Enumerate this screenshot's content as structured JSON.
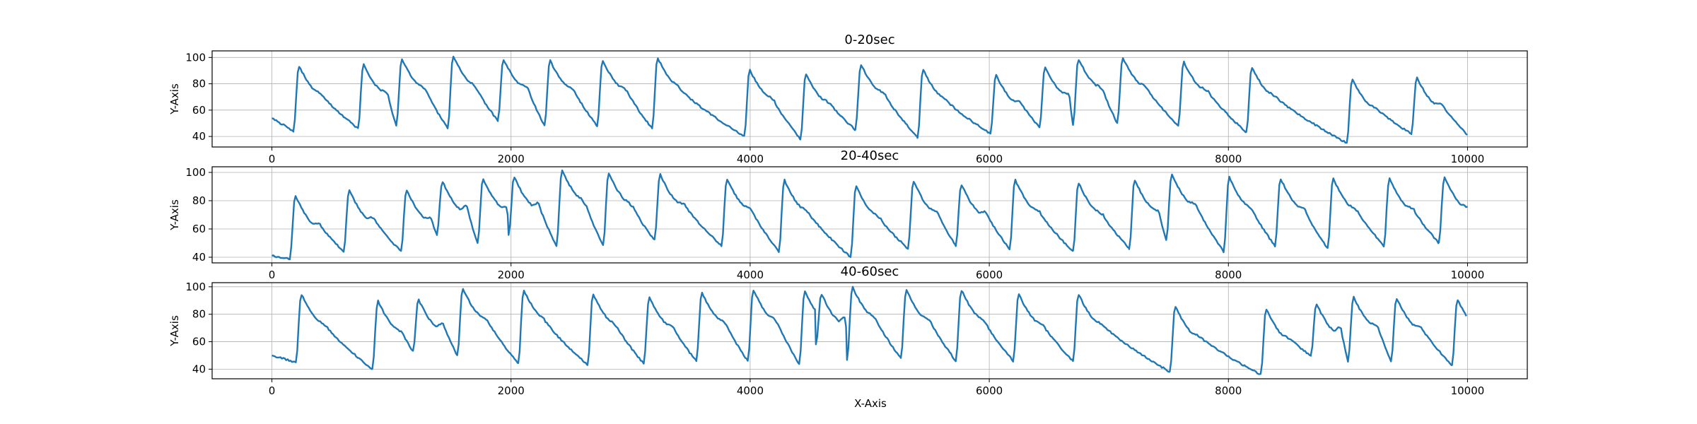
{
  "chart_data": {
    "type": "line",
    "xlabel": "X-Axis",
    "grid": true,
    "line_color": "#1f77b4",
    "panels": [
      {
        "title": "0-20sec",
        "ylabel": "Y-Axis",
        "xlim": [
          -500,
          10500
        ],
        "ylim": [
          32,
          105
        ],
        "xticks": [
          0,
          2000,
          4000,
          6000,
          8000,
          10000
        ],
        "yticks": [
          40,
          60,
          80,
          100
        ],
        "baseline": {
          "start": 54,
          "end": 41
        },
        "beats": [
          {
            "x": 0,
            "peak": 54,
            "y0": 54
          },
          {
            "x": 180,
            "peak": 94,
            "y0": 44
          },
          {
            "x": 720,
            "peak": 95,
            "y0": 46
          },
          {
            "x": 1040,
            "peak": 99,
            "y0": 48
          },
          {
            "x": 1470,
            "peak": 101,
            "y0": 46
          },
          {
            "x": 1890,
            "peak": 99,
            "y0": 52
          },
          {
            "x": 2280,
            "peak": 98,
            "y0": 48
          },
          {
            "x": 2720,
            "peak": 98,
            "y0": 48
          },
          {
            "x": 3180,
            "peak": 100,
            "y0": 46
          },
          {
            "x": 3950,
            "peak": 91,
            "y0": 40
          },
          {
            "x": 4420,
            "peak": 88,
            "y0": 38
          },
          {
            "x": 4880,
            "peak": 95,
            "y0": 45
          },
          {
            "x": 5400,
            "peak": 91,
            "y0": 39
          },
          {
            "x": 6010,
            "peak": 87,
            "y0": 42
          },
          {
            "x": 6420,
            "peak": 93,
            "y0": 47
          },
          {
            "x": 6700,
            "peak": 99,
            "y0": 49
          },
          {
            "x": 7070,
            "peak": 100,
            "y0": 50
          },
          {
            "x": 7580,
            "peak": 97,
            "y0": 48
          },
          {
            "x": 8150,
            "peak": 93,
            "y0": 43
          },
          {
            "x": 8990,
            "peak": 84,
            "y0": 35
          },
          {
            "x": 9530,
            "peak": 85,
            "y0": 42
          }
        ]
      },
      {
        "title": "20-40sec",
        "ylabel": "Y-Axis",
        "xlim": [
          -500,
          10500
        ],
        "ylim": [
          36,
          104
        ],
        "xticks": [
          0,
          2000,
          4000,
          6000,
          8000,
          10000
        ],
        "yticks": [
          40,
          60,
          80,
          100
        ],
        "baseline": {
          "start": 41,
          "end": 50
        },
        "beats": [
          {
            "x": 0,
            "peak": 41,
            "y0": 41
          },
          {
            "x": 150,
            "peak": 84,
            "y0": 39
          },
          {
            "x": 600,
            "peak": 88,
            "y0": 44
          },
          {
            "x": 1080,
            "peak": 88,
            "y0": 44
          },
          {
            "x": 1380,
            "peak": 94,
            "y0": 56
          },
          {
            "x": 1720,
            "peak": 96,
            "y0": 50
          },
          {
            "x": 1980,
            "peak": 97,
            "y0": 56
          },
          {
            "x": 2380,
            "peak": 102,
            "y0": 48
          },
          {
            "x": 2770,
            "peak": 100,
            "y0": 48
          },
          {
            "x": 3200,
            "peak": 99,
            "y0": 52
          },
          {
            "x": 3760,
            "peak": 96,
            "y0": 48
          },
          {
            "x": 4240,
            "peak": 95,
            "y0": 44
          },
          {
            "x": 4840,
            "peak": 91,
            "y0": 40
          },
          {
            "x": 5320,
            "peak": 94,
            "y0": 46
          },
          {
            "x": 5720,
            "peak": 92,
            "y0": 48
          },
          {
            "x": 6170,
            "peak": 95,
            "y0": 46
          },
          {
            "x": 6700,
            "peak": 93,
            "y0": 44
          },
          {
            "x": 7170,
            "peak": 95,
            "y0": 46
          },
          {
            "x": 7480,
            "peak": 99,
            "y0": 52
          },
          {
            "x": 7960,
            "peak": 97,
            "y0": 44
          },
          {
            "x": 8390,
            "peak": 96,
            "y0": 48
          },
          {
            "x": 8830,
            "peak": 96,
            "y0": 46
          },
          {
            "x": 9300,
            "peak": 96,
            "y0": 48
          },
          {
            "x": 9760,
            "peak": 97,
            "y0": 50
          }
        ]
      },
      {
        "title": "40-60sec",
        "ylabel": "Y-Axis",
        "xlim": [
          -500,
          10500
        ],
        "ylim": [
          33,
          103
        ],
        "xticks": [
          0,
          2000,
          4000,
          6000,
          8000,
          10000
        ],
        "yticks": [
          40,
          60,
          80,
          100
        ],
        "baseline": {
          "start": 50,
          "end": 80
        },
        "beats": [
          {
            "x": 0,
            "peak": 50,
            "y0": 50
          },
          {
            "x": 200,
            "peak": 95,
            "y0": 45
          },
          {
            "x": 840,
            "peak": 90,
            "y0": 40
          },
          {
            "x": 1180,
            "peak": 91,
            "y0": 53
          },
          {
            "x": 1550,
            "peak": 99,
            "y0": 50
          },
          {
            "x": 2060,
            "peak": 98,
            "y0": 44
          },
          {
            "x": 2640,
            "peak": 95,
            "y0": 43
          },
          {
            "x": 3110,
            "peak": 93,
            "y0": 44
          },
          {
            "x": 3550,
            "peak": 96,
            "y0": 46
          },
          {
            "x": 3980,
            "peak": 98,
            "y0": 46
          },
          {
            "x": 4410,
            "peak": 97,
            "y0": 44
          },
          {
            "x": 4550,
            "peak": 95,
            "y0": 58
          },
          {
            "x": 4810,
            "peak": 100,
            "y0": 47
          },
          {
            "x": 5260,
            "peak": 98,
            "y0": 48
          },
          {
            "x": 5720,
            "peak": 98,
            "y0": 46
          },
          {
            "x": 6200,
            "peak": 95,
            "y0": 46
          },
          {
            "x": 6700,
            "peak": 95,
            "y0": 46
          },
          {
            "x": 7510,
            "peak": 86,
            "y0": 38
          },
          {
            "x": 8270,
            "peak": 84,
            "y0": 36
          },
          {
            "x": 8690,
            "peak": 88,
            "y0": 50
          },
          {
            "x": 9000,
            "peak": 93,
            "y0": 46
          },
          {
            "x": 9360,
            "peak": 92,
            "y0": 46
          },
          {
            "x": 9870,
            "peak": 91,
            "y0": 43
          }
        ]
      }
    ]
  }
}
